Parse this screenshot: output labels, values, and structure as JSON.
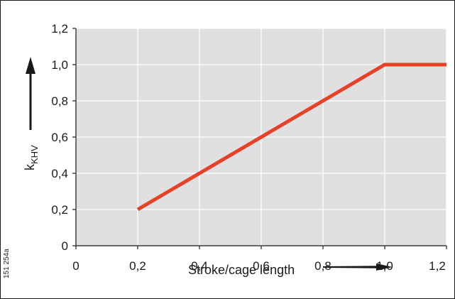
{
  "chart_data": {
    "type": "line",
    "xlabel": "Stroke/cage length",
    "ylabel": {
      "base": "k",
      "subscript": "KHV"
    },
    "xlim": [
      0,
      1.2
    ],
    "ylim": [
      0,
      1.2
    ],
    "xticks": [
      0,
      0.2,
      0.4,
      0.6,
      0.8,
      1.0,
      1.2
    ],
    "yticks": [
      0,
      0.2,
      0.4,
      0.6,
      0.8,
      1.0,
      1.2
    ],
    "xtick_labels": [
      "0",
      "0,2",
      "0,4",
      "0,6",
      "0,8",
      "1,0",
      "1,2"
    ],
    "ytick_labels": [
      "0",
      "0,2",
      "0,4",
      "0,6",
      "0,8",
      "1,0",
      "1,2"
    ],
    "grid": true,
    "series": [
      {
        "x": [
          0.2,
          1.0,
          1.2
        ],
        "y": [
          0.2,
          1.0,
          1.0
        ]
      }
    ],
    "figure_code": "151 254a",
    "colors": {
      "line": "#e8412a",
      "plot_background": "#e0e0e0",
      "grid": "#ffffff",
      "axis": "#1a1a1a"
    }
  }
}
